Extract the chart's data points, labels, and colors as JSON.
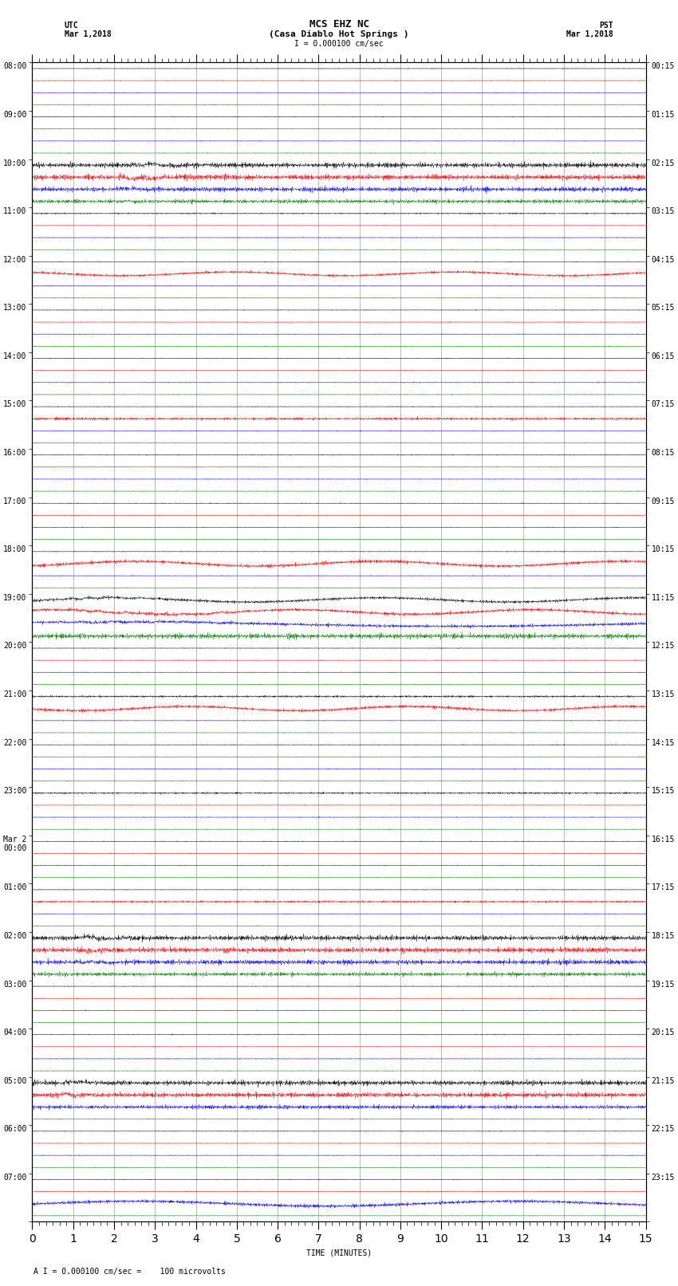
{
  "title_line1": "MCS EHZ NC",
  "title_line2": "(Casa Diablo Hot Springs )",
  "scale_label": "I = 0.000100 cm/sec",
  "bottom_label": "A I = 0.000100 cm/sec =    100 microvolts",
  "xlabel": "TIME (MINUTES)",
  "left_label": "UTC",
  "left_date": "Mar 1,2018",
  "right_label": "PST",
  "right_date": "Mar 1,2018",
  "utc_hour_labels": [
    "08:00",
    "09:00",
    "10:00",
    "11:00",
    "12:00",
    "13:00",
    "14:00",
    "15:00",
    "16:00",
    "17:00",
    "18:00",
    "19:00",
    "20:00",
    "21:00",
    "22:00",
    "23:00",
    "Mar 2\n00:00",
    "01:00",
    "02:00",
    "03:00",
    "04:00",
    "05:00",
    "06:00",
    "07:00"
  ],
  "pst_hour_labels": [
    "00:15",
    "01:15",
    "02:15",
    "03:15",
    "04:15",
    "05:15",
    "06:15",
    "07:15",
    "08:15",
    "09:15",
    "10:15",
    "11:15",
    "12:15",
    "13:15",
    "14:15",
    "15:15",
    "16:15",
    "17:15",
    "18:15",
    "19:15",
    "20:15",
    "21:15",
    "22:15",
    "23:15"
  ],
  "trace_colors": [
    "black",
    "red",
    "blue",
    "green"
  ],
  "num_hours": 24,
  "traces_per_hour": 4,
  "bg_color": "white",
  "xmin": 0,
  "xmax": 15,
  "font_size_title": 9,
  "font_size_labels": 7
}
